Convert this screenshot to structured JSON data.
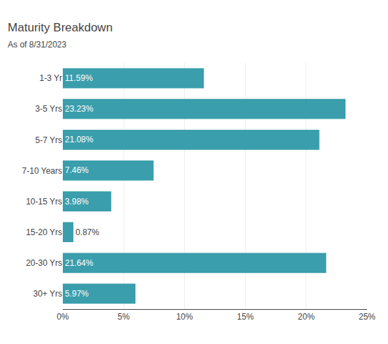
{
  "chart_data": {
    "type": "bar",
    "orientation": "horizontal",
    "title": "Maturity Breakdown",
    "subtitle": "As of 8/31/2023",
    "categories": [
      "1-3 Yr",
      "3-5 Yrs",
      "5-7 Yrs",
      "7-10 Years",
      "10-15 Yrs",
      "15-20 Yrs",
      "20-30 Yrs",
      "30+ Yrs"
    ],
    "values": [
      11.59,
      23.23,
      21.08,
      7.46,
      3.98,
      0.87,
      21.64,
      5.97
    ],
    "value_labels": [
      "11.59%",
      "23.23%",
      "21.08%",
      "7.46%",
      "3.98%",
      "0.87%",
      "21.64%",
      "5.97%"
    ],
    "data_labels": true,
    "color": "#3a9eac",
    "xlim": [
      0,
      25
    ],
    "xticks": [
      {
        "value": 0,
        "label": "0%"
      },
      {
        "value": 5,
        "label": "5%"
      },
      {
        "value": 10,
        "label": "10%"
      },
      {
        "value": 15,
        "label": "15%"
      },
      {
        "value": 20,
        "label": "20%"
      },
      {
        "value": 25,
        "label": "25%"
      }
    ],
    "grid": true
  }
}
